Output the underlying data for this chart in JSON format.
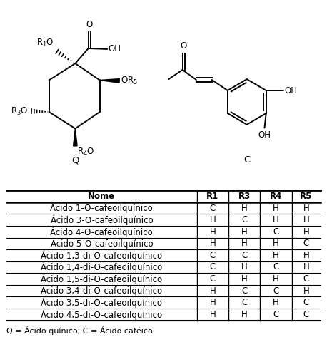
{
  "table_headers": [
    "Nome",
    "R1",
    "R3",
    "R4",
    "R5"
  ],
  "table_rows": [
    [
      "Ácido 1-O-cafeoilquínico",
      "C",
      "H",
      "H",
      "H"
    ],
    [
      "Ácido 3-O-cafeoilquínico",
      "H",
      "C",
      "H",
      "H"
    ],
    [
      "Ácido 4-O-cafeoilquínico",
      "H",
      "H",
      "C",
      "H"
    ],
    [
      "Ácido 5-O-cafeoilquínico",
      "H",
      "H",
      "H",
      "C"
    ],
    [
      "Ácido 1,3-di-O-cafeoilquínico",
      "C",
      "C",
      "H",
      "H"
    ],
    [
      "Ácido 1,4-di-O-cafeoilquínico",
      "C",
      "H",
      "C",
      "H"
    ],
    [
      "Ácido 1,5-di-O-cafeoilquínico",
      "C",
      "H",
      "H",
      "C"
    ],
    [
      "Ácido 3,4-di-O-cafeoilquínico",
      "H",
      "C",
      "C",
      "H"
    ],
    [
      "Ácido 3,5-di-O-cafeoilquínico",
      "H",
      "C",
      "H",
      "C"
    ],
    [
      "Ácido 4,5-di-O-cafeoilquínico",
      "H",
      "H",
      "C",
      "C"
    ]
  ],
  "footer": "Q = Ácido quínico; C = Ácido caféico",
  "label_Q": "Q",
  "label_C": "C",
  "bg_color": "#ffffff",
  "line_color": "#000000",
  "font_size": 8.5,
  "lw": 1.4
}
